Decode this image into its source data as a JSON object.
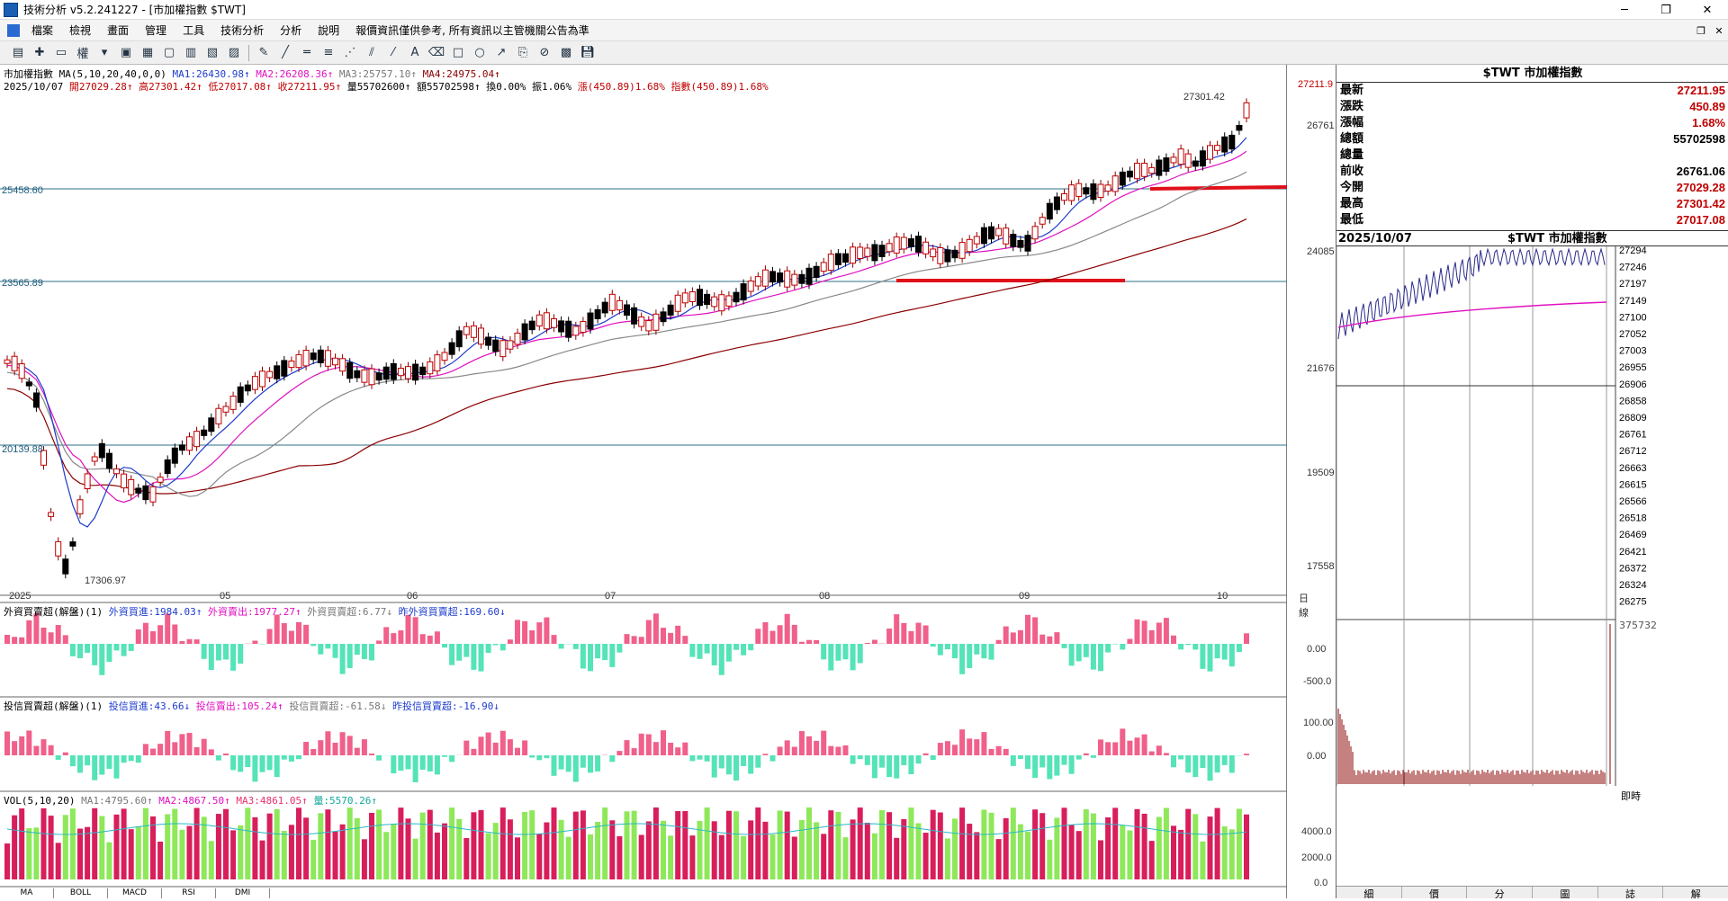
{
  "window": {
    "title": "技術分析 v5.2.241227 - [市加權指數 $TWT]",
    "min": "─",
    "max": "❐",
    "close": "✕"
  },
  "menu": [
    "檔案",
    "檢視",
    "畫面",
    "管理",
    "工具",
    "技術分析",
    "分析",
    "說明",
    "報價資訊僅供參考, 所有資訊以主管機關公告為準"
  ],
  "main": {
    "line1": {
      "name": "市加權指數",
      "params": "MA(5,10,20,40,0,0)",
      "ma1": "MA1:26430.98↑",
      "ma2": "MA2:26208.36↑",
      "ma3": "MA3:25757.10↑",
      "ma4": "MA4:24975.04↑"
    },
    "line2": {
      "date": "2025/10/07",
      "open": "開27029.28↑",
      "high": "高27301.42↑",
      "low": "低27017.08↑",
      "close": "收27211.95↑",
      "vol": "量55702600↑",
      "amt": "額55702598↑",
      "turn": "換0.00%",
      "amp": "振1.06%",
      "chg": "漲(450.89)1.68%",
      "idx": "指數(450.89)1.68%"
    },
    "y_labels": [
      "27211.9",
      "26761",
      "24085",
      "21676",
      "19509",
      "17558"
    ],
    "hlines": [
      "25458.60",
      "23565.89",
      "20139.88"
    ],
    "high_mark": "27301.42",
    "low_mark": "17306.97",
    "x_labels": [
      "2025",
      "05",
      "06",
      "07",
      "08",
      "09",
      "10"
    ],
    "x_unit": "日線"
  },
  "pane1": {
    "title": "外資買賣超(解盤)(1)",
    "a": "外資買進:1984.03↑",
    "b": "外資賣出:1977.27↑",
    "c": "外資買賣超:6.77↓",
    "d": "昨外資買賣超:169.60↓",
    "y": [
      "0.00",
      "-500.0"
    ]
  },
  "pane2": {
    "title": "投信買賣超(解盤)(1)",
    "a": "投信買進:43.66↓",
    "b": "投信賣出:105.24↑",
    "c": "投信買賣超:-61.58↓",
    "d": "昨投信買賣超:-16.90↓",
    "y": [
      "100.00",
      "0.00"
    ]
  },
  "pane3": {
    "title": "VOL(5,10,20)",
    "a": "MA1:4795.60↑",
    "b": "MA2:4867.50↑",
    "c": "MA3:4861.05↑",
    "d": "量:5570.26↑",
    "y": [
      "4000.0",
      "2000.0",
      "0.0"
    ]
  },
  "bottom_tabs": [
    "MA",
    "BOLL",
    "MACD",
    "RSI",
    "DMI"
  ],
  "quote": {
    "title": "$TWT 市加權指數",
    "rows": [
      {
        "k": "最新",
        "v": "27211.95",
        "c": "#c00000"
      },
      {
        "k": "漲跌",
        "v": "450.89",
        "c": "#c00000"
      },
      {
        "k": "漲幅",
        "v": "1.68%",
        "c": "#c00000"
      },
      {
        "k": "總額",
        "v": "55702598",
        "c": "#000000"
      },
      {
        "k": "總量",
        "v": "",
        "c": "#000000"
      },
      {
        "k": "前收",
        "v": "26761.06",
        "c": "#000000"
      },
      {
        "k": "今開",
        "v": "27029.28",
        "c": "#c00000"
      },
      {
        "k": "最高",
        "v": "27301.42",
        "c": "#c00000"
      },
      {
        "k": "最低",
        "v": "27017.08",
        "c": "#c00000"
      }
    ]
  },
  "intraday": {
    "date": "2025/10/07",
    "title": "$TWT 市加權指數",
    "y": [
      "27294",
      "27246",
      "27197",
      "27149",
      "27100",
      "27052",
      "27003",
      "26955",
      "26906",
      "26858",
      "26809",
      "26761",
      "26712",
      "26663",
      "26615",
      "26566",
      "26518",
      "26469",
      "26421",
      "26372",
      "26324",
      "26275"
    ],
    "vol_max": "375732",
    "unit": "即時"
  },
  "right_tabs": [
    "細",
    "價",
    "分",
    "圖",
    "誌",
    "解"
  ]
}
